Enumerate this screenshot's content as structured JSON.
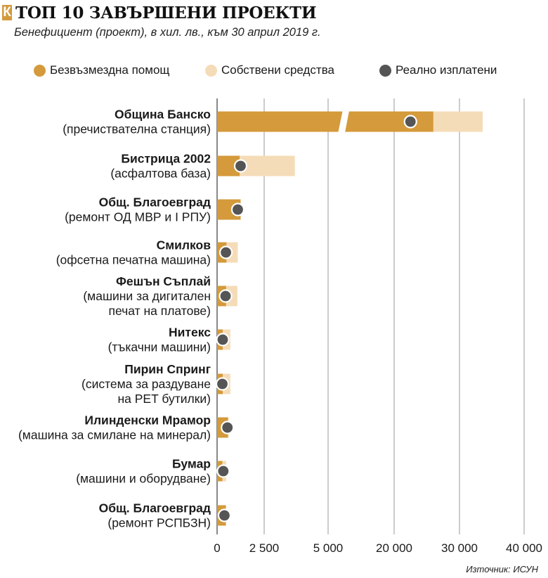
{
  "header": {
    "logo": "К",
    "title": "ТОП 10 ЗАВЪРШЕНИ ПРОЕКТИ",
    "subtitle": "Бенефициент (проект), в хил. лв., към 30 април 2019 г."
  },
  "legend": [
    {
      "label": "Безвъзмездна помощ",
      "color": "#d49a3b"
    },
    {
      "label": "Собствени средства",
      "color": "#f5dcb8"
    },
    {
      "label": "Реално изплатени",
      "color": "#555555"
    }
  ],
  "source": "Източник: ИСУН",
  "colors": {
    "grant": "#d49a3b",
    "own": "#f5dcb8",
    "paid": "#555555",
    "paid_outline": "#ffffff",
    "grid": "#999999",
    "axis": "#555555"
  },
  "chart_data": {
    "type": "bar",
    "orientation": "horizontal",
    "stacked": true,
    "x_scale": "broken",
    "x_tick_labels": [
      "0",
      "2 500",
      "5 000",
      "20 000",
      "30 000",
      "40 000"
    ],
    "x_ticks": [
      0,
      2500,
      5000,
      20000,
      30000,
      40000
    ],
    "grid": true,
    "legend_position": "top",
    "categories": [
      {
        "name": "Община Банско",
        "desc": [
          "(пречиствателна станция)"
        ]
      },
      {
        "name": "Бистрица 2002",
        "desc": [
          "(асфалтова база)"
        ]
      },
      {
        "name": "Общ. Благоевград",
        "desc": [
          "(ремонт ОД МВР и I РПУ)"
        ]
      },
      {
        "name": "Смилков",
        "desc": [
          "(офсетна печатна машина)"
        ]
      },
      {
        "name": "Фешън Съплай",
        "desc": [
          "(машини за дигитален",
          "печат на платове)"
        ]
      },
      {
        "name": "Нитекс",
        "desc": [
          "(тъкачни машини)"
        ]
      },
      {
        "name": "Пирин Спринг",
        "desc": [
          "(система за раздуване",
          "на PET бутилки)"
        ]
      },
      {
        "name": "Илинденски Мрамор",
        "desc": [
          "(машина за смилане на минерал)"
        ]
      },
      {
        "name": "Бумар",
        "desc": [
          "(машини и оборудване)"
        ]
      },
      {
        "name": "Общ. Благоевград",
        "desc": [
          "(ремонт РСПБЗН)"
        ]
      }
    ],
    "series": [
      {
        "name": "Безвъзмездна помощ",
        "values": [
          26000,
          1200,
          1250,
          500,
          480,
          300,
          300,
          580,
          280,
          470
        ]
      },
      {
        "name": "Собствени средства",
        "values": [
          7600,
          2500,
          0,
          600,
          600,
          400,
          400,
          30,
          200,
          0
        ]
      },
      {
        "name": "Реално изплатени",
        "values": [
          22500,
          1250,
          1100,
          470,
          450,
          300,
          280,
          550,
          330,
          390
        ]
      }
    ]
  }
}
